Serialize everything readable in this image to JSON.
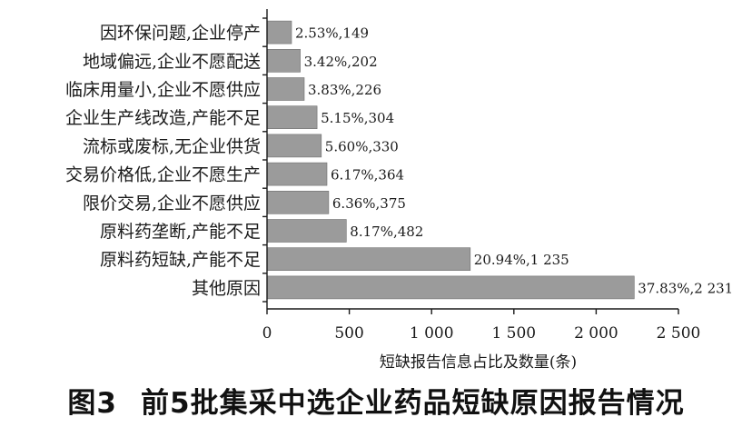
{
  "figure": {
    "number": "图3",
    "caption": "前5批集采中选企业药品短缺原因报告情况"
  },
  "chart_data": {
    "type": "bar",
    "orientation": "horizontal",
    "categories": [
      "因环保问题,企业停产",
      "地域偏远,企业不愿配送",
      "临床用量小,企业不愿供应",
      "企业生产线改造,产能不足",
      "流标或废标,无企业供货",
      "交易价格低,企业不愿生产",
      "限价交易,企业不愿供应",
      "原料药垄断,产能不足",
      "原料药短缺,产能不足",
      "其他原因"
    ],
    "values": [
      149,
      202,
      226,
      304,
      330,
      364,
      375,
      482,
      1235,
      2231
    ],
    "data_labels": [
      "2.53%,149",
      "3.42%,202",
      "3.83%,226",
      "5.15%,304",
      "5.60%,330",
      "6.17%,364",
      "6.36%,375",
      "8.17%,482",
      "20.94%,1 235",
      "37.83%,2 231"
    ],
    "xlabel": "短缺报告信息占比及数量(条)",
    "ylabel": "",
    "xlim": [
      0,
      2500
    ],
    "x_ticks": [
      0,
      500,
      1000,
      1500,
      2000,
      2500
    ],
    "x_tick_labels": [
      "0",
      "500",
      "1 000",
      "1 500",
      "2 000",
      "2 500"
    ],
    "grid": false,
    "bar_color": "#9b9b9b"
  }
}
